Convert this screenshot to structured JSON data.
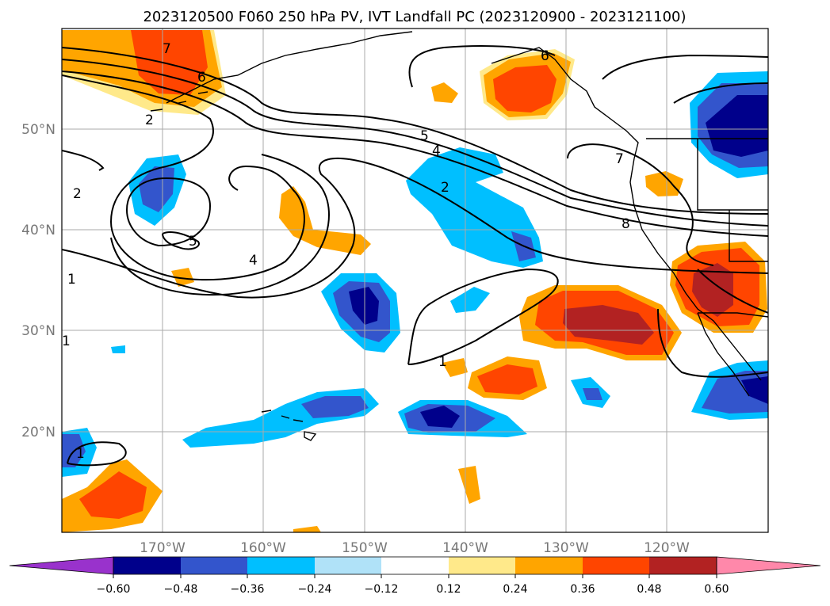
{
  "title": "2023120500 F060 250 hPa PV, IVT Landfall PC (2023120900 - 2023121100)",
  "colors": {
    "neg5": "#9932cc",
    "neg4": "#00008b",
    "neg3": "#3355cc",
    "neg2": "#00bfff",
    "neg1": "#b0e2f8",
    "zero": "#ffffff",
    "pos1": "#ffe98a",
    "pos2": "#ffa500",
    "pos3": "#ff4500",
    "pos4": "#b22222",
    "pos5": "#ff88aa"
  },
  "map": {
    "lon_labels": [
      "170°W",
      "160°W",
      "150°W",
      "140°W",
      "130°W",
      "120°W"
    ],
    "lat_labels": [
      "50°N",
      "40°N",
      "30°N",
      "20°N"
    ]
  },
  "colorbar": {
    "ticks": [
      "−0.60",
      "−0.48",
      "−0.36",
      "−0.24",
      "−0.12",
      "0.12",
      "0.24",
      "0.36",
      "0.48",
      "0.60"
    ]
  },
  "contour_labels": [
    "7",
    "6",
    "2",
    "2",
    "5",
    "4",
    "5",
    "4",
    "2",
    "1",
    "1",
    "1",
    "1",
    "7",
    "8",
    "6"
  ]
}
